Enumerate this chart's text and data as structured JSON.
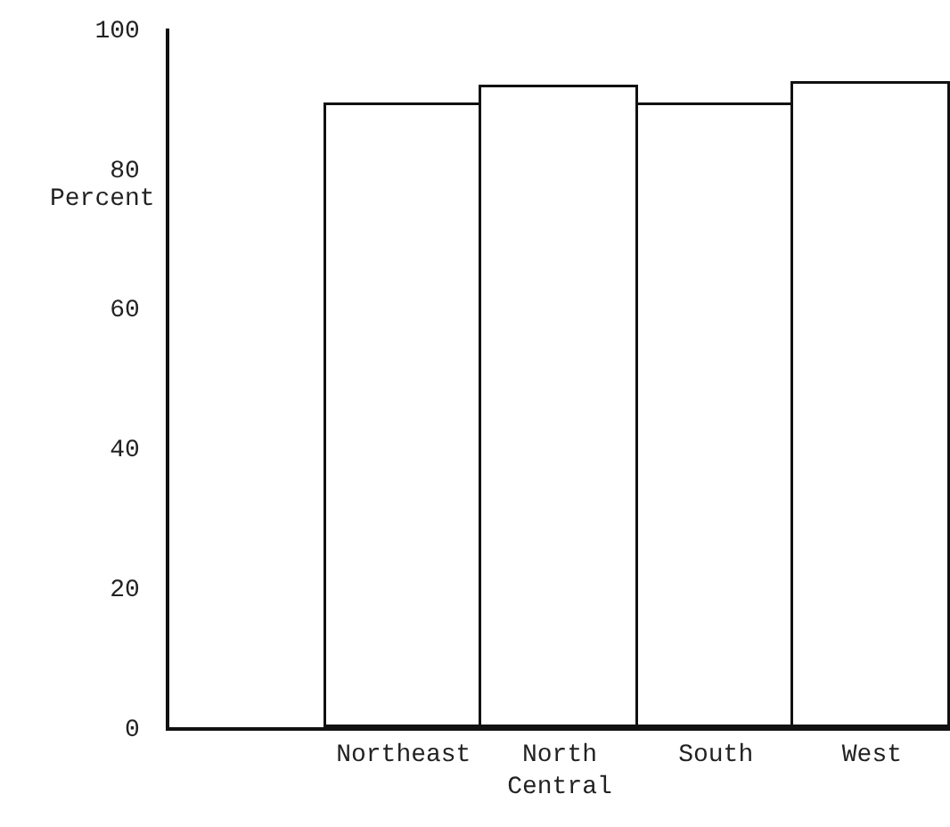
{
  "chart_data": {
    "type": "bar",
    "ylabel": "Percent",
    "categories": [
      null,
      "Northeast",
      "North Central",
      "South",
      "West"
    ],
    "values": [
      null,
      89,
      91.5,
      89,
      92
    ],
    "color": "#ffffff",
    "ylim": [
      0,
      100
    ],
    "yticks": [
      0,
      20,
      40,
      60,
      80,
      100
    ]
  }
}
